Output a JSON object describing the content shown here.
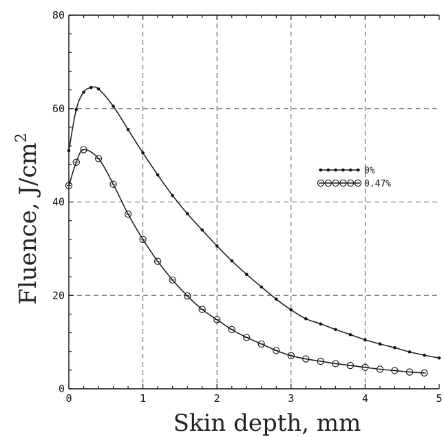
{
  "chart_data": {
    "type": "line",
    "xlabel": "Skin depth, mm",
    "ylabel": "Fluence, J/cm",
    "ylabel_superscript": "2",
    "xlim": [
      0,
      5
    ],
    "ylim": [
      0,
      80
    ],
    "x_ticks": [
      "0",
      "1",
      "2",
      "3",
      "4",
      "5"
    ],
    "y_ticks": [
      "0",
      "20",
      "40",
      "60",
      "80"
    ],
    "grid": true,
    "legend_placement": "right",
    "series": [
      {
        "name": "0%",
        "marker": "dot",
        "color": "#222222",
        "points": [
          [
            0,
            51
          ],
          [
            0.1,
            59.8
          ],
          [
            0.2,
            63.5
          ],
          [
            0.3,
            64.5
          ],
          [
            0.4,
            64.2
          ],
          [
            0.6,
            60.5
          ],
          [
            0.8,
            55.5
          ],
          [
            1.0,
            50.5
          ],
          [
            1.2,
            45.8
          ],
          [
            1.4,
            41.4
          ],
          [
            1.6,
            37.5
          ],
          [
            1.8,
            34.0
          ],
          [
            2.0,
            30.6
          ],
          [
            2.2,
            27.4
          ],
          [
            2.4,
            24.5
          ],
          [
            2.6,
            21.8
          ],
          [
            2.8,
            19.2
          ],
          [
            3.0,
            16.9
          ],
          [
            3.2,
            15.0
          ],
          [
            3.4,
            13.9
          ],
          [
            3.6,
            12.7
          ],
          [
            3.8,
            11.6
          ],
          [
            4.0,
            10.5
          ],
          [
            4.2,
            9.6
          ],
          [
            4.4,
            8.8
          ],
          [
            4.6,
            7.9
          ],
          [
            4.8,
            7.2
          ],
          [
            5.0,
            6.6
          ]
        ]
      },
      {
        "name": "0.47%",
        "marker": "circle",
        "color": "#222222",
        "points": [
          [
            0,
            43.5
          ],
          [
            0.1,
            48.5
          ],
          [
            0.2,
            51.2
          ],
          [
            0.4,
            49.3
          ],
          [
            0.6,
            43.8
          ],
          [
            0.8,
            37.4
          ],
          [
            1.0,
            32.0
          ],
          [
            1.2,
            27.3
          ],
          [
            1.4,
            23.3
          ],
          [
            1.6,
            19.9
          ],
          [
            1.8,
            17.0
          ],
          [
            2.0,
            14.8
          ],
          [
            2.2,
            12.7
          ],
          [
            2.4,
            11.0
          ],
          [
            2.6,
            9.6
          ],
          [
            2.8,
            8.2
          ],
          [
            3.0,
            7.1
          ],
          [
            3.2,
            6.4
          ],
          [
            3.4,
            5.9
          ],
          [
            3.6,
            5.4
          ],
          [
            3.8,
            5.0
          ],
          [
            4.0,
            4.6
          ],
          [
            4.2,
            4.2
          ],
          [
            4.4,
            3.9
          ],
          [
            4.6,
            3.6
          ],
          [
            4.8,
            3.4
          ]
        ]
      }
    ]
  }
}
